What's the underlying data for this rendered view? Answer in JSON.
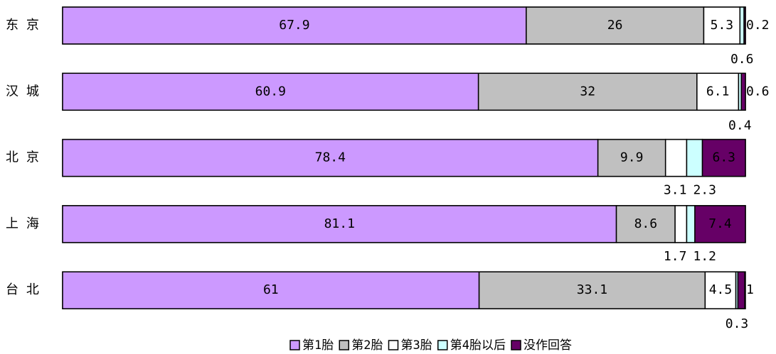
{
  "chart_data": {
    "type": "stacked_bar_horizontal",
    "categories": [
      "东 京",
      "汉 城",
      "北 京",
      "上 海",
      "台 北"
    ],
    "series": [
      {
        "name": "第1胎",
        "color": "#cc99ff",
        "values": [
          67.9,
          60.9,
          78.4,
          81.1,
          61.0
        ]
      },
      {
        "name": "第2胎",
        "color": "#c0c0c0",
        "values": [
          26.0,
          32.0,
          9.9,
          8.6,
          33.1
        ]
      },
      {
        "name": "第3胎",
        "color": "#ffffff",
        "values": [
          5.3,
          6.1,
          3.1,
          1.7,
          4.5
        ]
      },
      {
        "name": "第4胎以后",
        "color": "#ccffff",
        "values": [
          0.6,
          0.4,
          2.3,
          1.2,
          0.3
        ]
      },
      {
        "name": "没作回答",
        "color": "#660066",
        "values": [
          0.2,
          0.6,
          6.3,
          7.4,
          1.0
        ]
      }
    ],
    "xlim": [
      0,
      100
    ]
  }
}
